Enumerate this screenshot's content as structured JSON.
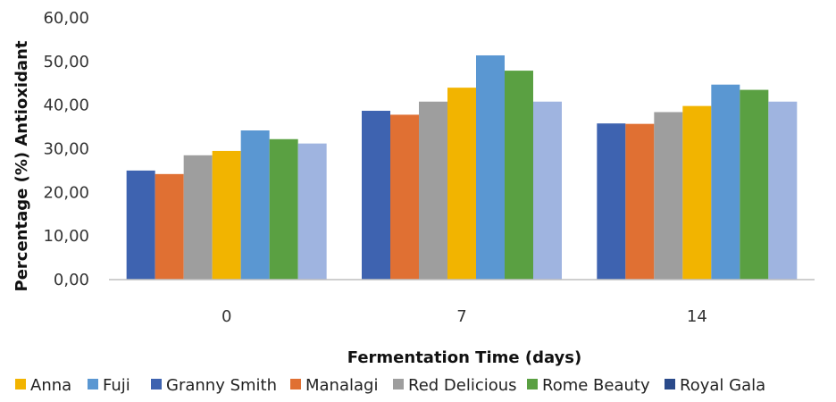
{
  "chart_data": {
    "type": "bar",
    "title": "",
    "xlabel": "Fermentation Time (days)",
    "ylabel": "Percentage (%) Antioxidant",
    "categories": [
      "0",
      "7",
      "14"
    ],
    "ylim": [
      0,
      60
    ],
    "yticks": [
      "0,00",
      "10,00",
      "20,00",
      "30,00",
      "40,00",
      "50,00",
      "60,00"
    ],
    "grid": false,
    "legend_position": "bottom",
    "bar_series": [
      {
        "key": "s1",
        "values": [
          25.0,
          38.7,
          35.8
        ],
        "color": "#3E63B0"
      },
      {
        "key": "s2",
        "values": [
          24.2,
          37.8,
          35.7
        ],
        "color": "#E07033"
      },
      {
        "key": "s3",
        "values": [
          28.5,
          40.8,
          38.4
        ],
        "color": "#9E9E9E"
      },
      {
        "key": "s4",
        "values": [
          29.5,
          44.0,
          39.8
        ],
        "color": "#F2B400"
      },
      {
        "key": "s5",
        "values": [
          34.2,
          51.4,
          44.7
        ],
        "color": "#5A97D2"
      },
      {
        "key": "s6",
        "values": [
          32.2,
          47.9,
          43.5
        ],
        "color": "#5AA042"
      },
      {
        "key": "s7",
        "values": [
          31.2,
          40.8,
          40.8
        ],
        "color": "#9FB4E0"
      }
    ],
    "legend": [
      {
        "name": "Anna",
        "color": "#F2B400"
      },
      {
        "name": "Fuji",
        "color": "#5A97D2"
      },
      {
        "name": "Granny Smith",
        "color": "#3E63B0"
      },
      {
        "name": "Manalagi",
        "color": "#E07033"
      },
      {
        "name": "Red Delicious",
        "color": "#9E9E9E"
      },
      {
        "name": "Rome Beauty",
        "color": "#5AA042"
      },
      {
        "name": "Royal Gala",
        "color": "#2A4A8A"
      }
    ]
  },
  "colors": {
    "axis": "#BFBFBF"
  }
}
